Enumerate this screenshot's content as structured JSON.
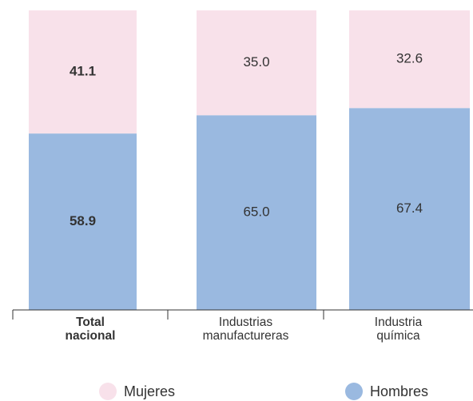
{
  "chart_data": {
    "type": "stacked_bar",
    "categories": [
      "Total nacional",
      "Industrias manufactureras",
      "Industria química"
    ],
    "series": [
      {
        "name": "Hombres",
        "color": "#9ab9e0",
        "values": [
          58.9,
          65,
          67.4
        ],
        "value_labels": [
          "58.9",
          "65.0",
          "67.4"
        ]
      },
      {
        "name": "Mujeres",
        "color": "#f8e1ea",
        "values": [
          41.1,
          35,
          32.6
        ],
        "value_labels": [
          "41.1",
          "35.0",
          "32.6"
        ]
      }
    ],
    "ylim": [
      0,
      100
    ]
  }
}
